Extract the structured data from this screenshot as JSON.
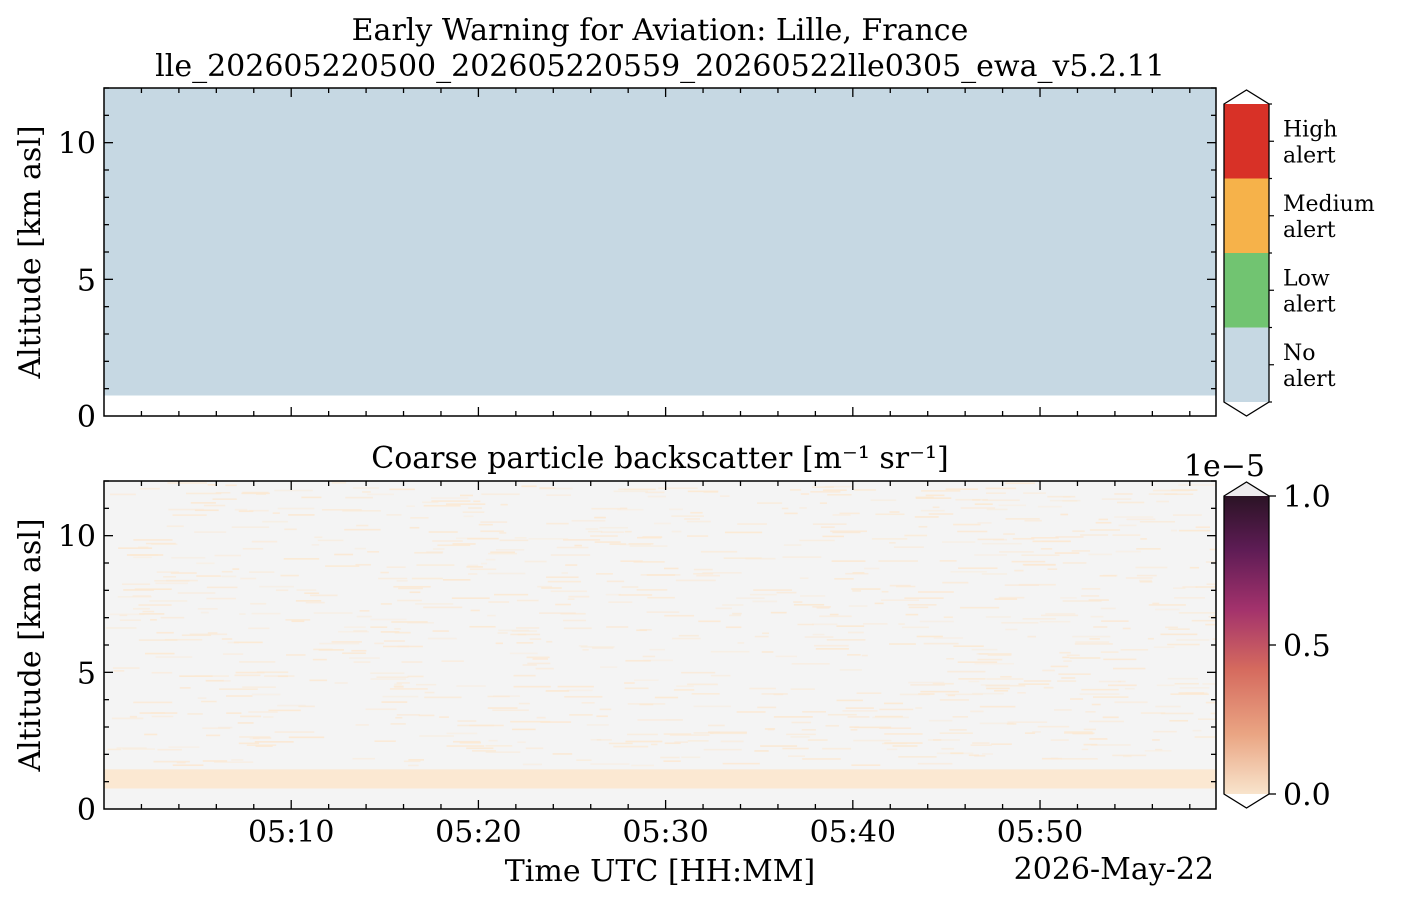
{
  "figure": {
    "title": "Early Warning for Aviation: Lille, France",
    "subtitle": "lle_202605220500_202605220559_20260522lle0305_ewa_v5.2.11"
  },
  "chart_data": [
    {
      "type": "heatmap",
      "panel": "alert",
      "title": "",
      "xlabel": "",
      "ylabel": "Altitude [km asl]",
      "xlim_minutes": [
        0,
        59.4
      ],
      "ylim": [
        0,
        12
      ],
      "x_ticks": [
        "05:10",
        "05:20",
        "05:30",
        "05:40",
        "05:50"
      ],
      "x_ticks_minutes": [
        10,
        20,
        30,
        40,
        50
      ],
      "x_tick_labels_visible": false,
      "y_ticks": [
        0,
        5,
        10
      ],
      "y_tick_labels": [
        "0",
        "5",
        "10"
      ],
      "fill": {
        "category": "No alert",
        "altitude_min_km": 0.75,
        "altitude_max_km": 12
      },
      "colorbar": {
        "type": "categorical",
        "categories": [
          {
            "label": [
              "No",
              "alert"
            ],
            "color": "#c6d8e3"
          },
          {
            "label": [
              "Low",
              "alert"
            ],
            "color": "#71c471"
          },
          {
            "label": [
              "Medium",
              "alert"
            ],
            "color": "#f6b24a"
          },
          {
            "label": [
              "High",
              "alert"
            ],
            "color": "#d83127"
          }
        ]
      }
    },
    {
      "type": "heatmap",
      "panel": "backscatter",
      "title": "Coarse particle backscatter [m⁻¹ sr⁻¹]",
      "xlabel": "Time UTC [HH:MM]",
      "date_label": "2026-May-22",
      "ylabel": "Altitude [km asl]",
      "xlim_minutes": [
        0,
        59.4
      ],
      "ylim": [
        0,
        12
      ],
      "x_ticks": [
        "05:10",
        "05:20",
        "05:30",
        "05:40",
        "05:50"
      ],
      "x_ticks_minutes": [
        10,
        20,
        30,
        40,
        50
      ],
      "y_ticks": [
        0,
        5,
        10
      ],
      "y_tick_labels": [
        "0",
        "5",
        "10"
      ],
      "background_color": "#f4f4f4",
      "low_value_color": "#fbe8d2",
      "near_surface_band": {
        "altitude_min_km": 0.75,
        "altitude_max_km": 1.45,
        "value": 0.0
      },
      "colorbar": {
        "type": "continuous",
        "vmin": 0.0,
        "vmax": 1.0,
        "scale_exponent_label": "1e−5",
        "ticks": [
          0.0,
          0.5,
          1.0
        ],
        "tick_labels": [
          "0.0",
          "0.5",
          "1.0"
        ],
        "colormap": [
          "#f8e4cc",
          "#eaa583",
          "#d56a5e",
          "#a3326c",
          "#5e1c55",
          "#2b1325"
        ]
      }
    }
  ]
}
